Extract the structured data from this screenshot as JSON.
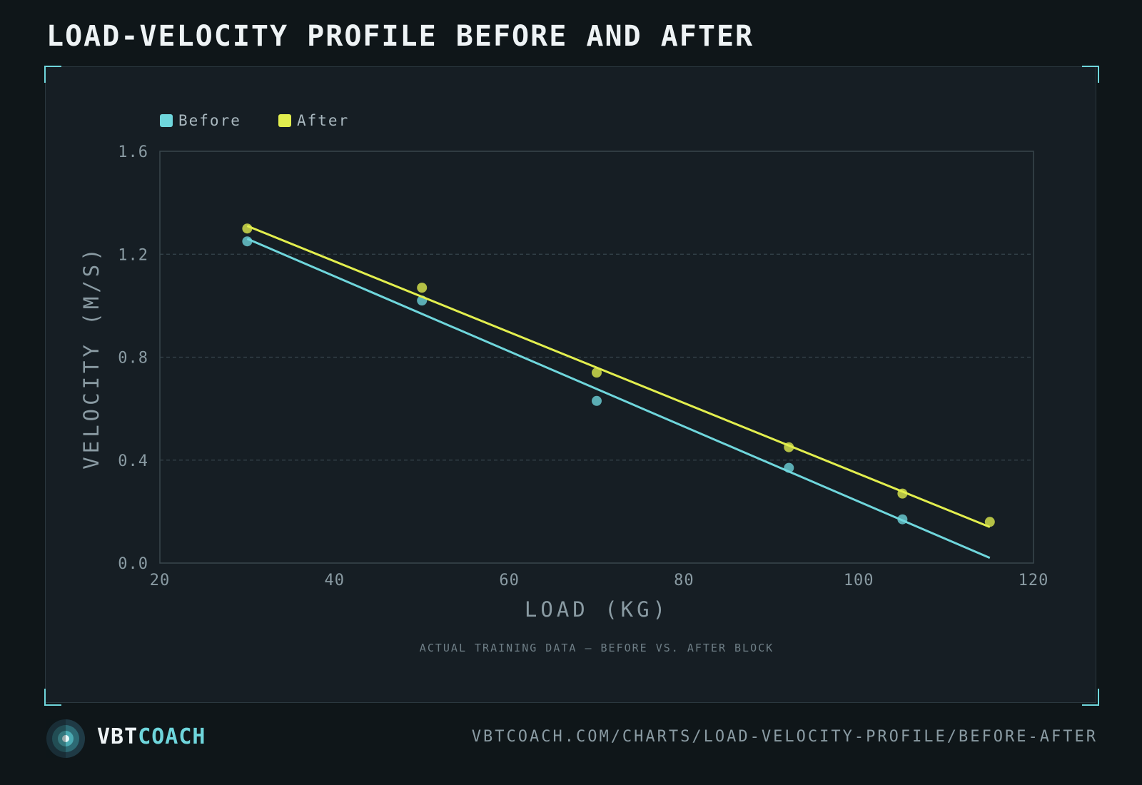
{
  "title": "LOAD-VELOCITY PROFILE BEFORE AND AFTER",
  "brand": {
    "part1": "VBT",
    "part2": "COACH"
  },
  "url": "VBTCOACH.COM/CHARTS/LOAD-VELOCITY-PROFILE/BEFORE-AFTER",
  "chart_data": {
    "type": "scatter",
    "title": "LOAD-VELOCITY PROFILE BEFORE AND AFTER",
    "xlabel": "LOAD (KG)",
    "ylabel": "VELOCITY (M/S)",
    "xlim": [
      20,
      120
    ],
    "ylim": [
      0,
      1.6
    ],
    "xticks": [
      20,
      40,
      60,
      80,
      100,
      120
    ],
    "xtick_labels": [
      "20",
      "40",
      "60",
      "80",
      "100",
      "120"
    ],
    "yticks": [
      0,
      0.4,
      0.8,
      1.2,
      1.6
    ],
    "ytick_labels": [
      "0.0",
      "0.4",
      "0.8",
      "1.2",
      "1.6"
    ],
    "grid": "horizontal dashed",
    "legend": "top-left",
    "annotation": "ACTUAL TRAINING DATA — BEFORE VS. AFTER BLOCK",
    "series": [
      {
        "name": "Before",
        "color": "#6fd6dc",
        "x": [
          30,
          50,
          70,
          92,
          105
        ],
        "y": [
          1.25,
          1.02,
          0.63,
          0.37,
          0.17
        ],
        "fit": {
          "x": [
            30,
            115
          ],
          "y": [
            1.26,
            0.02
          ]
        }
      },
      {
        "name": "After",
        "color": "#e2ee4e",
        "x": [
          30,
          50,
          70,
          92,
          105,
          115
        ],
        "y": [
          1.3,
          1.07,
          0.74,
          0.45,
          0.27,
          0.16
        ],
        "fit": {
          "x": [
            30,
            115
          ],
          "y": [
            1.31,
            0.14
          ]
        }
      }
    ]
  }
}
